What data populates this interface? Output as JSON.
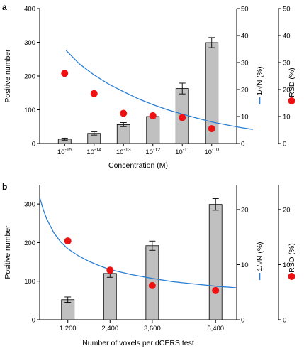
{
  "chart_data": [
    {
      "panel": "a",
      "type": "bar",
      "categories": [
        "10",
        "10",
        "10",
        "10",
        "10",
        "10"
      ],
      "category_exponents": [
        "-15",
        "-14",
        "-13",
        "-12",
        "-11",
        "-10"
      ],
      "xlabel": "Concentration (M)",
      "ylabel": "Positive number",
      "ylim": [
        0,
        400
      ],
      "yticks": [
        0,
        100,
        200,
        300,
        400
      ],
      "bars": {
        "values": [
          13,
          30,
          56,
          80,
          163,
          299
        ],
        "errors": [
          3,
          5,
          6,
          7,
          16,
          15
        ],
        "color": "#c0c0c0"
      },
      "curve": {
        "axis": "right1",
        "color": "#2a7fd4",
        "legend_symbol": "line",
        "points": [
          [
            0.05,
            34.5
          ],
          [
            0.5,
            29.5
          ],
          [
            1.0,
            25.4
          ],
          [
            1.5,
            22.0
          ],
          [
            2.0,
            19.2
          ],
          [
            2.5,
            16.6
          ],
          [
            3.0,
            14.4
          ],
          [
            3.5,
            12.5
          ],
          [
            4.0,
            10.9
          ],
          [
            4.5,
            9.4
          ],
          [
            5.0,
            8.0
          ],
          [
            5.5,
            6.9
          ],
          [
            6.0,
            5.9
          ],
          [
            6.4,
            5.2
          ]
        ]
      },
      "dots": {
        "axis": "right2",
        "values": [
          26,
          18.5,
          11.2,
          10.3,
          9.6,
          5.5
        ],
        "color": "#ee1111"
      },
      "right_axis_1": {
        "label": "1/√N (%)",
        "ylim": [
          0,
          50
        ],
        "yticks": [
          0,
          10,
          20,
          30,
          40,
          50
        ]
      },
      "right_axis_2": {
        "label": "RSD (%)",
        "ylim": [
          0,
          50
        ],
        "yticks": [
          0,
          10,
          20,
          30,
          40,
          50
        ]
      }
    },
    {
      "panel": "b",
      "type": "bar",
      "categories": [
        "1,200",
        "2,400",
        "3,600",
        "5,400"
      ],
      "x": [
        1200,
        2400,
        3600,
        5400
      ],
      "xlim": [
        400,
        6000
      ],
      "xlabel": "Number of voxels per dCERS test",
      "ylabel": "Positive number",
      "ylim": [
        0,
        350
      ],
      "yticks": [
        0,
        100,
        200,
        300
      ],
      "bars": {
        "values": [
          52,
          120,
          192,
          299
        ],
        "errors": [
          7,
          10,
          12,
          15
        ],
        "color": "#c0c0c0"
      },
      "curve": {
        "axis": "right1",
        "color": "#2a7fd4",
        "legend_symbol": "line",
        "points": [
          [
            410,
            22.0
          ],
          [
            500,
            20.0
          ],
          [
            600,
            18.3
          ],
          [
            800,
            15.8
          ],
          [
            1000,
            14.1
          ],
          [
            1200,
            12.9
          ],
          [
            1500,
            11.6
          ],
          [
            1800,
            10.6
          ],
          [
            2100,
            9.8
          ],
          [
            2400,
            9.1
          ],
          [
            3000,
            8.2
          ],
          [
            3600,
            7.5
          ],
          [
            4200,
            6.9
          ],
          [
            4800,
            6.5
          ],
          [
            5400,
            6.1
          ],
          [
            6000,
            5.8
          ]
        ]
      },
      "dots": {
        "axis": "right2",
        "values": [
          14.3,
          9.0,
          6.2,
          5.3
        ],
        "color": "#ee1111"
      },
      "right_axis_1": {
        "label": "1/√N (%)",
        "ylim": [
          0,
          24.5
        ],
        "yticks": [
          0,
          10,
          20
        ]
      },
      "right_axis_2": {
        "label": "RSD (%)",
        "ylim": [
          0,
          24.5
        ],
        "yticks": [
          0,
          10,
          20
        ]
      }
    }
  ]
}
